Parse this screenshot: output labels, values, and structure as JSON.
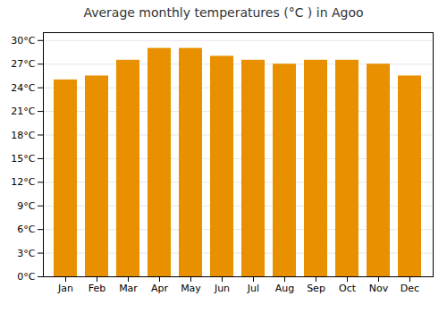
{
  "chart_data": {
    "type": "bar",
    "title": "Average monthly temperatures (°C ) in Agoo",
    "categories": [
      "Jan",
      "Feb",
      "Mar",
      "Apr",
      "May",
      "Jun",
      "Jul",
      "Aug",
      "Sep",
      "Oct",
      "Nov",
      "Dec"
    ],
    "values": [
      25.0,
      25.5,
      27.5,
      29.0,
      29.0,
      28.0,
      27.5,
      27.0,
      27.5,
      27.5,
      27.0,
      25.5
    ],
    "color": "#E89000",
    "ylim": [
      0,
      31
    ],
    "yticks": [
      {
        "value": 0,
        "label": "0°C"
      },
      {
        "value": 3,
        "label": "3°C"
      },
      {
        "value": 6,
        "label": "6°C"
      },
      {
        "value": 9,
        "label": "9°C"
      },
      {
        "value": 12,
        "label": "12°C"
      },
      {
        "value": 15,
        "label": "15°C"
      },
      {
        "value": 18,
        "label": "18°C"
      },
      {
        "value": 21,
        "label": "21°C"
      },
      {
        "value": 24,
        "label": "24°C"
      },
      {
        "value": 27,
        "label": "27°C"
      },
      {
        "value": 30,
        "label": "30°C"
      }
    ],
    "grid": true
  }
}
